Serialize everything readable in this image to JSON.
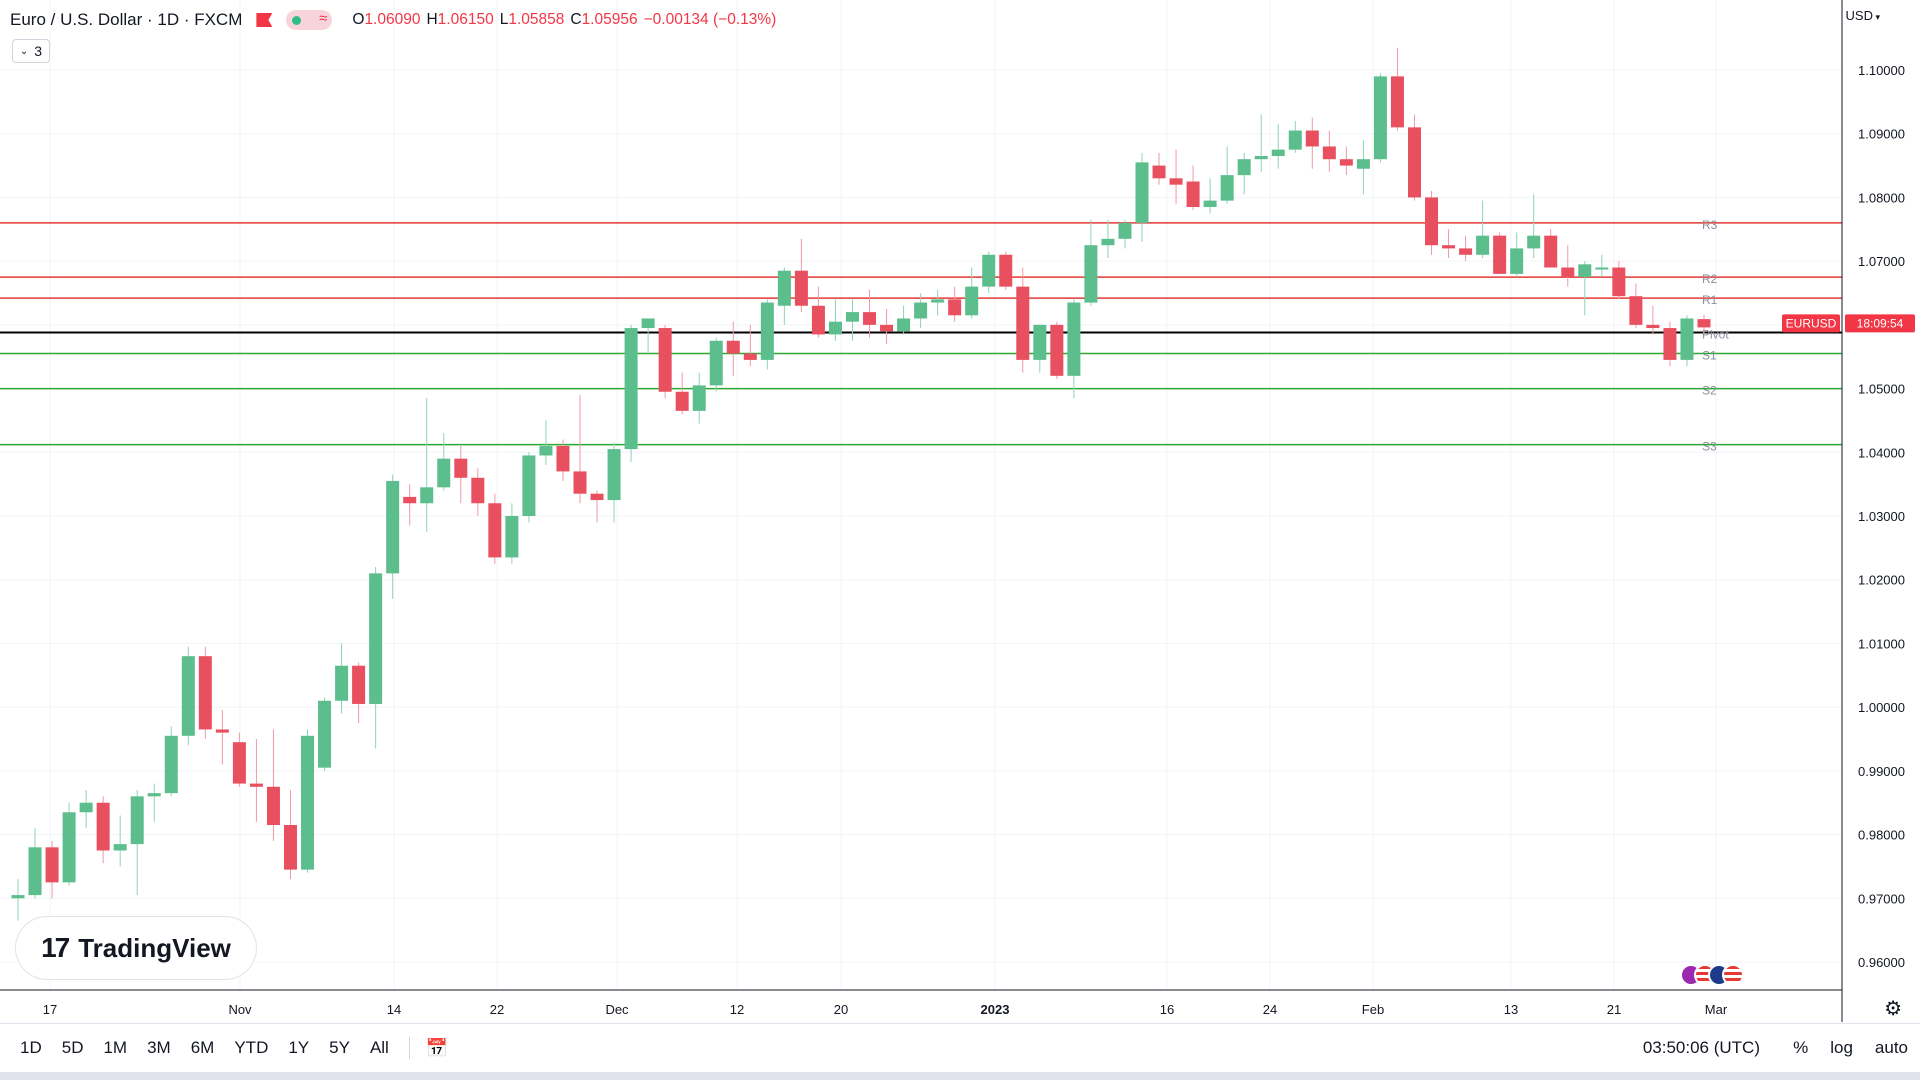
{
  "header": {
    "symbol_title": "Euro / U.S. Dollar · 1D · FXCM",
    "ohlc": {
      "o_label": "O",
      "o": "1.06090",
      "h_label": "H",
      "h": "1.06150",
      "l_label": "L",
      "l": "1.05858",
      "c_label": "C",
      "c": "1.05956",
      "change": "−0.00134 (−0.13%)"
    },
    "indicator_count": "3",
    "currency": "USD",
    "flag_color": "#f23645"
  },
  "logo": {
    "text": "TradingView",
    "mark": "17"
  },
  "bottom": {
    "ranges": [
      "1D",
      "5D",
      "1M",
      "3M",
      "6M",
      "YTD",
      "1Y",
      "5Y",
      "All"
    ],
    "clock": "03:50:06 (UTC)",
    "percent_label": "%",
    "log_label": "log",
    "auto_label": "auto"
  },
  "colors": {
    "up": "#26a69a",
    "up_body": "#5cbd8d",
    "down": "#ef5350",
    "down_body": "#e8505f",
    "resistance": "#e53935",
    "support": "#2da832",
    "pivot": "#000000"
  },
  "chart_data": {
    "type": "candlestick",
    "symbol": "EURUSD",
    "ylim": [
      0.955,
      1.105
    ],
    "y_ticks": [
      "1.10000",
      "1.09000",
      "1.08000",
      "1.07000",
      "1.06000",
      "1.05000",
      "1.04000",
      "1.03000",
      "1.02000",
      "1.01000",
      "1.00000",
      "0.99000",
      "0.98000",
      "0.97000",
      "0.96000"
    ],
    "x_ticks": [
      "17",
      "Nov",
      "14",
      "22",
      "Dec",
      "12",
      "20",
      "2023",
      "16",
      "24",
      "Feb",
      "13",
      "21",
      "Mar"
    ],
    "last_price_label": "EURUSD",
    "countdown": "18:09:54",
    "levels": [
      {
        "name": "R3",
        "value": 1.076,
        "kind": "resistance"
      },
      {
        "name": "R2",
        "value": 1.0675,
        "kind": "resistance"
      },
      {
        "name": "R1",
        "value": 1.0642,
        "kind": "resistance"
      },
      {
        "name": "Pivot",
        "value": 1.0588,
        "kind": "pivot"
      },
      {
        "name": "S1",
        "value": 1.0555,
        "kind": "support"
      },
      {
        "name": "S2",
        "value": 1.05,
        "kind": "support"
      },
      {
        "name": "S3",
        "value": 1.0412,
        "kind": "support"
      }
    ],
    "candles": [
      {
        "o": 0.97,
        "h": 0.973,
        "l": 0.9665,
        "c": 0.9705
      },
      {
        "o": 0.9705,
        "h": 0.981,
        "l": 0.97,
        "c": 0.978
      },
      {
        "o": 0.978,
        "h": 0.979,
        "l": 0.97,
        "c": 0.9725
      },
      {
        "o": 0.9725,
        "h": 0.985,
        "l": 0.972,
        "c": 0.9835
      },
      {
        "o": 0.9835,
        "h": 0.987,
        "l": 0.981,
        "c": 0.985
      },
      {
        "o": 0.985,
        "h": 0.986,
        "l": 0.9755,
        "c": 0.9775
      },
      {
        "o": 0.9775,
        "h": 0.983,
        "l": 0.975,
        "c": 0.9785
      },
      {
        "o": 0.9785,
        "h": 0.987,
        "l": 0.9705,
        "c": 0.986
      },
      {
        "o": 0.986,
        "h": 0.988,
        "l": 0.982,
        "c": 0.9865
      },
      {
        "o": 0.9865,
        "h": 0.997,
        "l": 0.986,
        "c": 0.9955
      },
      {
        "o": 0.9955,
        "h": 1.0095,
        "l": 0.994,
        "c": 1.008
      },
      {
        "o": 1.008,
        "h": 1.0095,
        "l": 0.995,
        "c": 0.9965
      },
      {
        "o": 0.9965,
        "h": 0.9995,
        "l": 0.991,
        "c": 0.996
      },
      {
        "o": 0.9945,
        "h": 0.996,
        "l": 0.9875,
        "c": 0.988
      },
      {
        "o": 0.988,
        "h": 0.995,
        "l": 0.982,
        "c": 0.9875
      },
      {
        "o": 0.9875,
        "h": 0.9965,
        "l": 0.979,
        "c": 0.9815
      },
      {
        "o": 0.9815,
        "h": 0.987,
        "l": 0.973,
        "c": 0.9745
      },
      {
        "o": 0.9745,
        "h": 0.9965,
        "l": 0.974,
        "c": 0.9955
      },
      {
        "o": 0.9905,
        "h": 1.0015,
        "l": 0.99,
        "c": 1.001
      },
      {
        "o": 1.001,
        "h": 1.01,
        "l": 0.999,
        "c": 1.0065
      },
      {
        "o": 1.0065,
        "h": 1.007,
        "l": 0.9975,
        "c": 1.0005
      },
      {
        "o": 1.0005,
        "h": 1.022,
        "l": 0.9935,
        "c": 1.021
      },
      {
        "o": 1.021,
        "h": 1.0365,
        "l": 1.017,
        "c": 1.0355
      },
      {
        "o": 1.033,
        "h": 1.035,
        "l": 1.0285,
        "c": 1.032
      },
      {
        "o": 1.032,
        "h": 1.0485,
        "l": 1.0275,
        "c": 1.0345
      },
      {
        "o": 1.0345,
        "h": 1.043,
        "l": 1.034,
        "c": 1.039
      },
      {
        "o": 1.039,
        "h": 1.041,
        "l": 1.032,
        "c": 1.036
      },
      {
        "o": 1.036,
        "h": 1.0375,
        "l": 1.03,
        "c": 1.032
      },
      {
        "o": 1.032,
        "h": 1.0335,
        "l": 1.0225,
        "c": 1.0235
      },
      {
        "o": 1.0235,
        "h": 1.032,
        "l": 1.0225,
        "c": 1.03
      },
      {
        "o": 1.03,
        "h": 1.04,
        "l": 1.029,
        "c": 1.0395
      },
      {
        "o": 1.0395,
        "h": 1.045,
        "l": 1.038,
        "c": 1.041
      },
      {
        "o": 1.041,
        "h": 1.042,
        "l": 1.0355,
        "c": 1.037
      },
      {
        "o": 1.037,
        "h": 1.049,
        "l": 1.032,
        "c": 1.0335
      },
      {
        "o": 1.0335,
        "h": 1.034,
        "l": 1.029,
        "c": 1.0325
      },
      {
        "o": 1.0325,
        "h": 1.0415,
        "l": 1.029,
        "c": 1.0405
      },
      {
        "o": 1.0405,
        "h": 1.06,
        "l": 1.0385,
        "c": 1.0595
      },
      {
        "o": 1.0595,
        "h": 1.061,
        "l": 1.0555,
        "c": 1.061
      },
      {
        "o": 1.0595,
        "h": 1.06,
        "l": 1.0485,
        "c": 1.0495
      },
      {
        "o": 1.0495,
        "h": 1.0525,
        "l": 1.046,
        "c": 1.0465
      },
      {
        "o": 1.0465,
        "h": 1.0525,
        "l": 1.0445,
        "c": 1.0505
      },
      {
        "o": 1.0505,
        "h": 1.058,
        "l": 1.0495,
        "c": 1.0575
      },
      {
        "o": 1.0575,
        "h": 1.0605,
        "l": 1.052,
        "c": 1.0555
      },
      {
        "o": 1.0555,
        "h": 1.06,
        "l": 1.0535,
        "c": 1.0545
      },
      {
        "o": 1.0545,
        "h": 1.064,
        "l": 1.053,
        "c": 1.0635
      },
      {
        "o": 1.063,
        "h": 1.069,
        "l": 1.06,
        "c": 1.0685
      },
      {
        "o": 1.0685,
        "h": 1.0735,
        "l": 1.062,
        "c": 1.063
      },
      {
        "o": 1.063,
        "h": 1.066,
        "l": 1.058,
        "c": 1.0585
      },
      {
        "o": 1.0585,
        "h": 1.064,
        "l": 1.0575,
        "c": 1.0605
      },
      {
        "o": 1.0605,
        "h": 1.064,
        "l": 1.0575,
        "c": 1.062
      },
      {
        "o": 1.062,
        "h": 1.0655,
        "l": 1.058,
        "c": 1.06
      },
      {
        "o": 1.06,
        "h": 1.0625,
        "l": 1.057,
        "c": 1.059
      },
      {
        "o": 1.059,
        "h": 1.063,
        "l": 1.0585,
        "c": 1.061
      },
      {
        "o": 1.061,
        "h": 1.065,
        "l": 1.0595,
        "c": 1.0635
      },
      {
        "o": 1.0635,
        "h": 1.0655,
        "l": 1.0615,
        "c": 1.064
      },
      {
        "o": 1.064,
        "h": 1.066,
        "l": 1.0605,
        "c": 1.0615
      },
      {
        "o": 1.0615,
        "h": 1.069,
        "l": 1.061,
        "c": 1.066
      },
      {
        "o": 1.066,
        "h": 1.0715,
        "l": 1.065,
        "c": 1.071
      },
      {
        "o": 1.071,
        "h": 1.0715,
        "l": 1.0655,
        "c": 1.066
      },
      {
        "o": 1.066,
        "h": 1.069,
        "l": 1.0525,
        "c": 1.0545
      },
      {
        "o": 1.0545,
        "h": 1.06,
        "l": 1.0525,
        "c": 1.06
      },
      {
        "o": 1.06,
        "h": 1.0605,
        "l": 1.0515,
        "c": 1.052
      },
      {
        "o": 1.052,
        "h": 1.064,
        "l": 1.0485,
        "c": 1.0635
      },
      {
        "o": 1.0635,
        "h": 1.0765,
        "l": 1.063,
        "c": 1.0725
      },
      {
        "o": 1.0725,
        "h": 1.0765,
        "l": 1.0705,
        "c": 1.0735
      },
      {
        "o": 1.0735,
        "h": 1.0765,
        "l": 1.072,
        "c": 1.076
      },
      {
        "o": 1.076,
        "h": 1.087,
        "l": 1.073,
        "c": 1.0855
      },
      {
        "o": 1.085,
        "h": 1.087,
        "l": 1.082,
        "c": 1.083
      },
      {
        "o": 1.083,
        "h": 1.0875,
        "l": 1.079,
        "c": 1.082
      },
      {
        "o": 1.0825,
        "h": 1.085,
        "l": 1.078,
        "c": 1.0785
      },
      {
        "o": 1.0785,
        "h": 1.083,
        "l": 1.0775,
        "c": 1.0795
      },
      {
        "o": 1.0795,
        "h": 1.088,
        "l": 1.079,
        "c": 1.0835
      },
      {
        "o": 1.0835,
        "h": 1.087,
        "l": 1.0805,
        "c": 1.086
      },
      {
        "o": 1.086,
        "h": 1.093,
        "l": 1.084,
        "c": 1.0865
      },
      {
        "o": 1.0865,
        "h": 1.0915,
        "l": 1.0845,
        "c": 1.0875
      },
      {
        "o": 1.0875,
        "h": 1.092,
        "l": 1.087,
        "c": 1.0905
      },
      {
        "o": 1.0905,
        "h": 1.0925,
        "l": 1.0845,
        "c": 1.088
      },
      {
        "o": 1.088,
        "h": 1.0905,
        "l": 1.084,
        "c": 1.086
      },
      {
        "o": 1.086,
        "h": 1.088,
        "l": 1.0835,
        "c": 1.085
      },
      {
        "o": 1.0845,
        "h": 1.089,
        "l": 1.0805,
        "c": 1.086
      },
      {
        "o": 1.086,
        "h": 1.0995,
        "l": 1.0855,
        "c": 1.099
      },
      {
        "o": 1.099,
        "h": 1.1035,
        "l": 1.0905,
        "c": 1.091
      },
      {
        "o": 1.091,
        "h": 1.093,
        "l": 1.0795,
        "c": 1.08
      },
      {
        "o": 1.08,
        "h": 1.081,
        "l": 1.071,
        "c": 1.0725
      },
      {
        "o": 1.0725,
        "h": 1.075,
        "l": 1.0705,
        "c": 1.072
      },
      {
        "o": 1.072,
        "h": 1.074,
        "l": 1.07,
        "c": 1.071
      },
      {
        "o": 1.071,
        "h": 1.0795,
        "l": 1.0705,
        "c": 1.074
      },
      {
        "o": 1.074,
        "h": 1.0745,
        "l": 1.068,
        "c": 1.068
      },
      {
        "o": 1.068,
        "h": 1.0745,
        "l": 1.0675,
        "c": 1.072
      },
      {
        "o": 1.072,
        "h": 1.0805,
        "l": 1.0705,
        "c": 1.074
      },
      {
        "o": 1.074,
        "h": 1.075,
        "l": 1.069,
        "c": 1.069
      },
      {
        "o": 1.069,
        "h": 1.0725,
        "l": 1.066,
        "c": 1.0675
      },
      {
        "o": 1.0675,
        "h": 1.07,
        "l": 1.0615,
        "c": 1.0695
      },
      {
        "o": 1.069,
        "h": 1.071,
        "l": 1.0675,
        "c": 1.069
      },
      {
        "o": 1.069,
        "h": 1.07,
        "l": 1.064,
        "c": 1.0645
      },
      {
        "o": 1.0645,
        "h": 1.0665,
        "l": 1.0595,
        "c": 1.06
      },
      {
        "o": 1.06,
        "h": 1.063,
        "l": 1.0585,
        "c": 1.0595
      },
      {
        "o": 1.0595,
        "h": 1.0605,
        "l": 1.0535,
        "c": 1.0545
      },
      {
        "o": 1.0545,
        "h": 1.0615,
        "l": 1.0535,
        "c": 1.061
      },
      {
        "o": 1.0609,
        "h": 1.0615,
        "l": 1.0586,
        "c": 1.0596
      }
    ]
  }
}
